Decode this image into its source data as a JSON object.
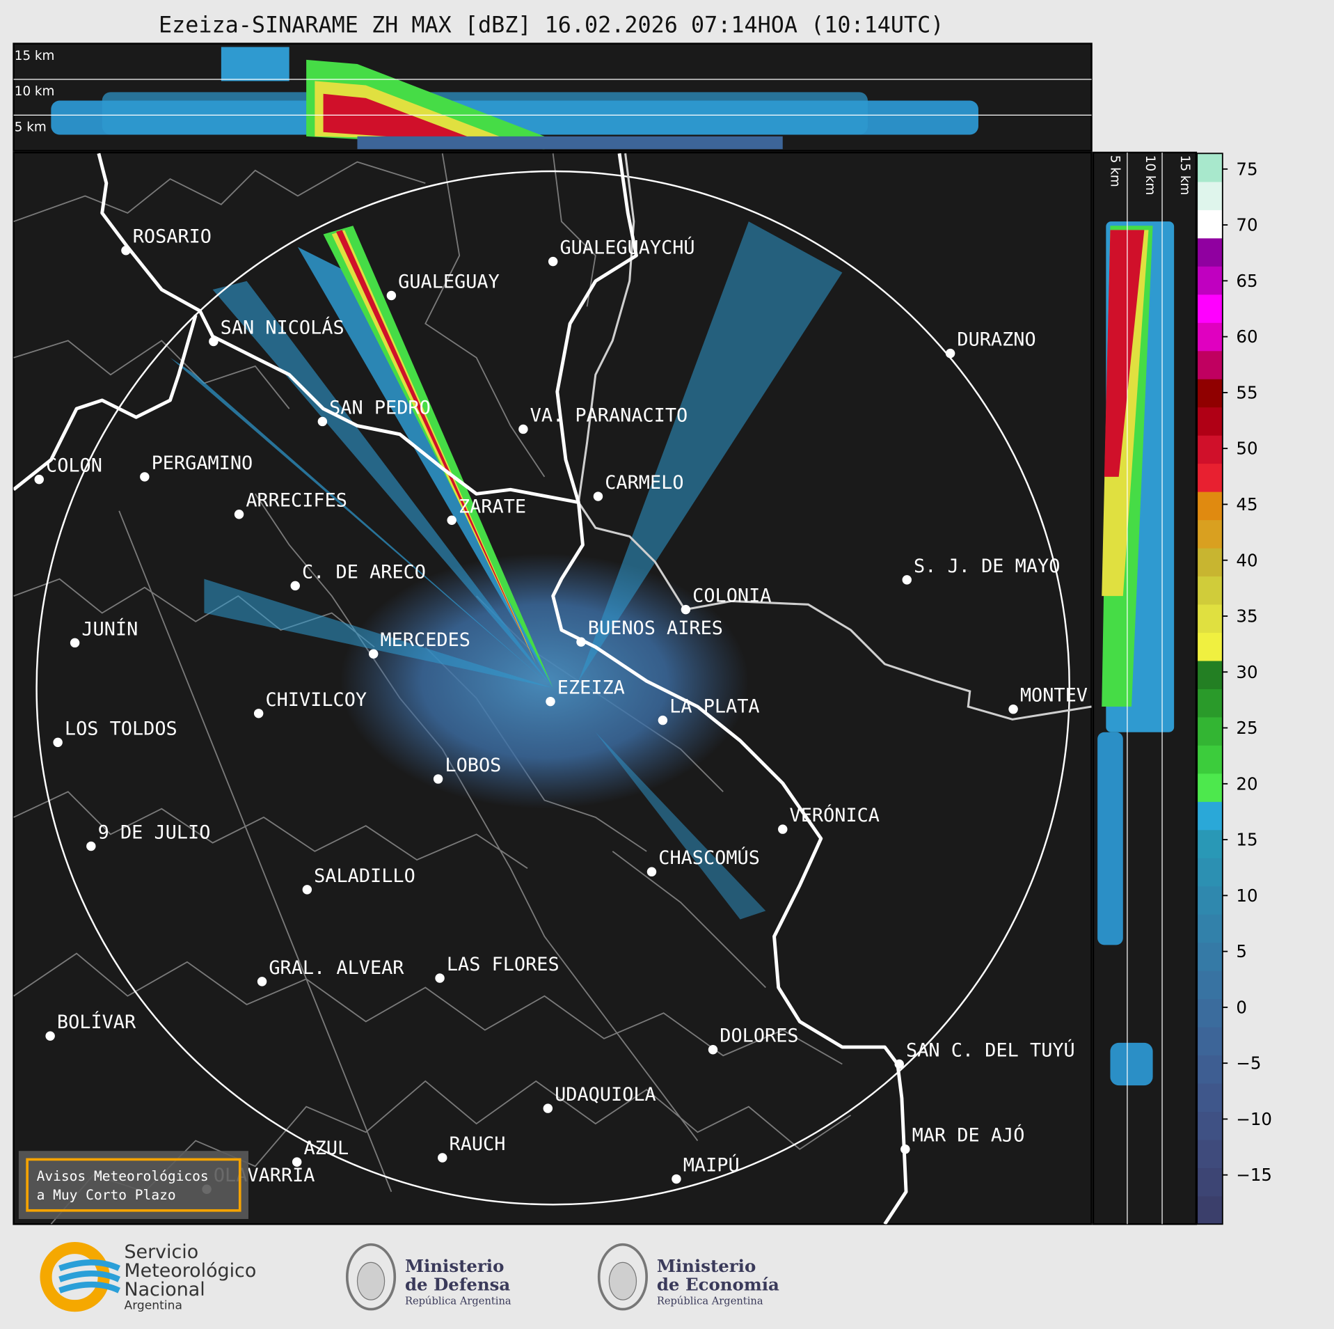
{
  "title": "Ezeiza-SINARAME ZH MAX [dBZ] 16.02.2026 07:14HOA (10:14UTC)",
  "profile_top": {
    "height_labels": [
      "15 km",
      "10 km",
      "5 km"
    ]
  },
  "profile_side": {
    "height_labels": [
      "5 km",
      "10 km",
      "15 km"
    ]
  },
  "map": {
    "cities": [
      "ROSARIO",
      "GUALEGUAYCHÚ",
      "GUALEGUAY",
      "SAN NICOLÁS",
      "DURAZNO",
      "SAN PEDRO",
      "VA. PARANACITO",
      "COLON",
      "PERGAMINO",
      "CARMELO",
      "ARRECIFES",
      "ZARATE",
      "S. J. DE MAYO",
      "C. DE ARECO",
      "COLONIA",
      "JUNÍN",
      "BUENOS AIRES",
      "MERCEDES",
      "EZEIZA",
      "LA PLATA",
      "MONTEV",
      "CHIVILCOY",
      "LOS TOLDOS",
      "LOBOS",
      "VERÓNICA",
      "9 DE JULIO",
      "CHASCOMÚS",
      "SALADILLO",
      "GRAL. ALVEAR",
      "LAS FLORES",
      "BOLÍVAR",
      "DOLORES",
      "SAN C. DEL TUYÚ",
      "UDAQUIOLA",
      "MAR DE AJÓ",
      "RAUCH",
      "AZUL",
      "OLAVARRÍA",
      "MAIPÚ"
    ]
  },
  "colorbar": {
    "lim": [
      -19.4,
      76.4
    ],
    "ticks": [
      75,
      70,
      65,
      60,
      55,
      50,
      45,
      40,
      35,
      30,
      25,
      20,
      15,
      10,
      5,
      0,
      {
        "value": -5,
        "label": "−5"
      },
      {
        "value": -10,
        "label": "−10"
      },
      {
        "value": -15,
        "label": "−15"
      }
    ],
    "colors": [
      "#3b3f6b",
      "#3d4574",
      "#3f4b7c",
      "#3f5184",
      "#3f578b",
      "#3e5e92",
      "#3d6598",
      "#3b6c9d",
      "#3873a2",
      "#357aa6",
      "#3281aa",
      "#2f88ae",
      "#2c90b2",
      "#2998b6",
      "#2aa8d8",
      "#4de84d",
      "#3ccc3c",
      "#33b533",
      "#2a9a2a",
      "#237f23",
      "#f0f040",
      "#e0e040",
      "#d0cc3a",
      "#c8b530",
      "#d9a020",
      "#e08a10",
      "#e82030",
      "#d0102a",
      "#b00015",
      "#900000",
      "#c00060",
      "#e000c0",
      "#ff00ff",
      "#c000c0",
      "#9000a0",
      "#ffffff",
      "#dff5ec",
      "#a8e8cc"
    ]
  },
  "notice": {
    "lines": [
      "Avisos Meteorológicos",
      "a Muy Corto Plazo"
    ]
  },
  "logos": {
    "smn": [
      "Servicio",
      "Meteorológico",
      "Nacional",
      "Argentina"
    ],
    "defensa": [
      "Ministerio",
      "de Defensa",
      "República Argentina"
    ],
    "economia": [
      "Ministerio",
      "de Economía",
      "República Argentina"
    ]
  }
}
